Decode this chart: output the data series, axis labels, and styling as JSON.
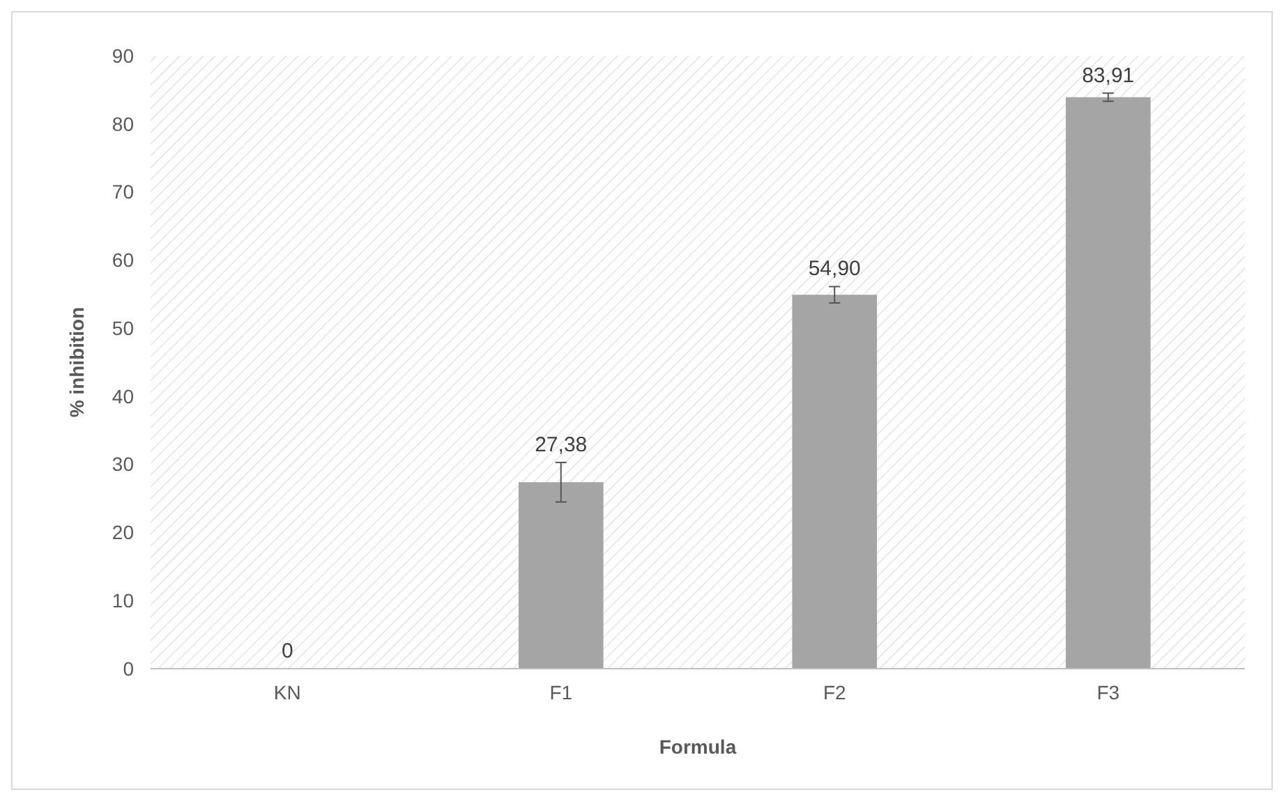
{
  "chart_data": {
    "type": "bar",
    "xlabel": "Formula",
    "ylabel": "% inhibition",
    "categories": [
      "KN",
      "F1",
      "F2",
      "F3"
    ],
    "values": [
      0,
      27.38,
      54.9,
      83.91
    ],
    "value_labels": [
      "0",
      "27,38",
      "54,90",
      "83,91"
    ],
    "errors": [
      null,
      2.9,
      1.2,
      0.6
    ],
    "color": "#a5a5a5",
    "ylim": [
      0,
      90
    ],
    "yticks": [
      0,
      10,
      20,
      30,
      40,
      50,
      60,
      70,
      80,
      90
    ],
    "grid": false
  }
}
